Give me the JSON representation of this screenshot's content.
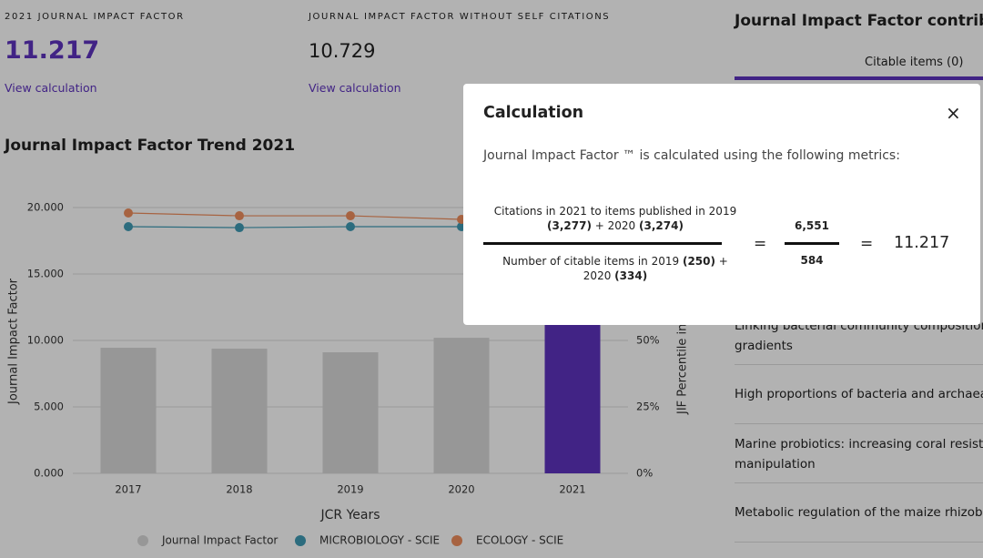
{
  "header": {
    "metrics": [
      {
        "label": "2021 JOURNAL IMPACT FACTOR",
        "value": "11.217",
        "link": "View calculation",
        "highlight": true
      },
      {
        "label": "JOURNAL IMPACT FACTOR WITHOUT SELF CITATIONS",
        "value": "10.729",
        "link": "View calculation",
        "highlight": false
      }
    ]
  },
  "chart": {
    "type": "bar",
    "title": "Journal Impact Factor Trend 2021",
    "xlabel": "JCR Years",
    "ylabel": "Journal Impact Factor",
    "y2label": "JIF Percentile in",
    "categories": [
      "2017",
      "2018",
      "2019",
      "2020",
      "2021"
    ],
    "ylim": [
      0,
      20
    ],
    "yticks": [
      {
        "value": 0,
        "label": "0.000"
      },
      {
        "value": 5,
        "label": "5.000"
      },
      {
        "value": 10,
        "label": "10.000"
      },
      {
        "value": 15,
        "label": "15.000"
      },
      {
        "value": 20,
        "label": "20.000"
      }
    ],
    "y2lim": [
      0,
      100
    ],
    "y2ticks": [
      {
        "value": 0,
        "label": "0%"
      },
      {
        "value": 25,
        "label": "25%"
      },
      {
        "value": 50,
        "label": "50%"
      }
    ],
    "grid": true,
    "series": [
      {
        "name": "Journal Impact Factor",
        "type": "bar",
        "colors": [
          "#d9d9d9",
          "#d9d9d9",
          "#d9d9d9",
          "#d9d9d9",
          "#5e33bf"
        ],
        "legend_color": "#d9d9d9",
        "values": [
          9.45,
          9.38,
          9.11,
          10.2,
          11.217
        ]
      },
      {
        "name": "MICROBIOLOGY - SCIE",
        "type": "line",
        "color": "#3f9bb5",
        "values": [
          18.56,
          18.49,
          18.56,
          18.56,
          null
        ]
      },
      {
        "name": "ECOLOGY - SCIE",
        "type": "line",
        "color": "#f08f5e",
        "values": [
          19.59,
          19.38,
          19.38,
          19.11,
          null
        ]
      }
    ]
  },
  "panel": {
    "title": "Journal Impact Factor contributi",
    "tab": "Citable items (0)",
    "items": [
      [
        "Linking bacterial community composition",
        "gradients"
      ],
      [
        "High proportions of bacteria and archaea a"
      ],
      [
        "Marine probiotics: increasing coral resistan",
        "manipulation"
      ],
      [
        "Metabolic regulation of the maize rhizobio"
      ]
    ]
  },
  "modal": {
    "title": "Calculation",
    "close": "×",
    "description": "Journal Impact Factor ™ is calculated using the following metrics:",
    "numerator": [
      {
        "text": "Citations in 2021 to items published in 2019 ",
        "bold": false
      },
      {
        "text": "(3,277)",
        "bold": true
      },
      {
        "text": " + 2020 ",
        "bold": false
      },
      {
        "text": "(3,274)",
        "bold": true
      }
    ],
    "denominator": [
      {
        "text": "Number of citable items in 2019 ",
        "bold": false
      },
      {
        "text": "(250)",
        "bold": true
      },
      {
        "text": " + 2020 ",
        "bold": false
      },
      {
        "text": "(334)",
        "bold": true
      }
    ],
    "equals": "=",
    "citations": "6,551",
    "items": "584",
    "result": "11.217"
  }
}
